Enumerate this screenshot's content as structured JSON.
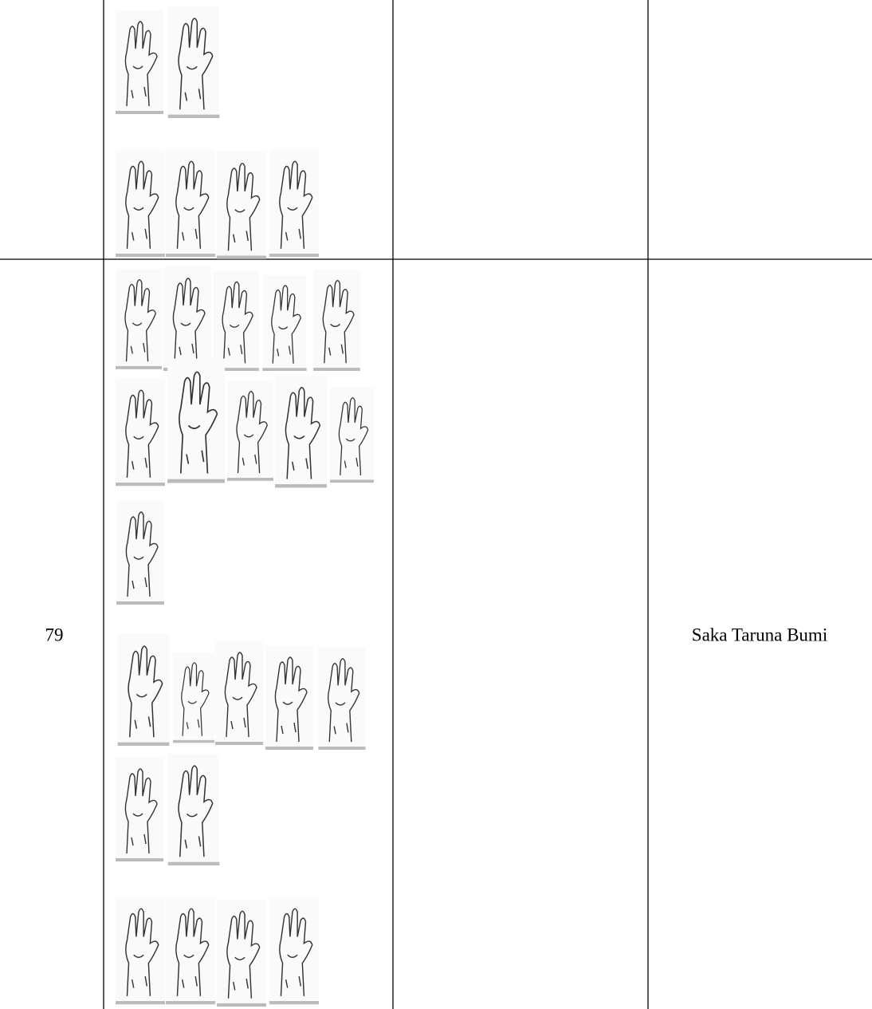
{
  "table": {
    "rows": [
      {
        "number": "79",
        "description": "Saka Taruna Bumi"
      }
    ]
  }
}
